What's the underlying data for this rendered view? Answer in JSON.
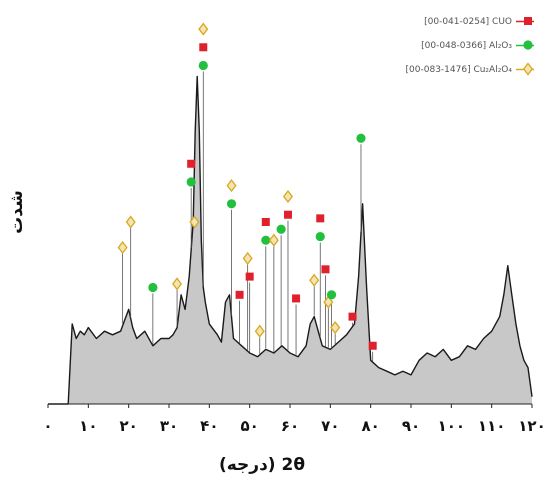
{
  "chart_data": {
    "type": "area",
    "xlabel": "2θ (درجه)",
    "ylabel": "شدت",
    "xlim": [
      0,
      120
    ],
    "ylim": [
      0,
      100
    ],
    "x_ticks": [
      "۰",
      "۱۰",
      "۲۰",
      "۳۰",
      "۴۰",
      "۵۰",
      "۶۰",
      "۷۰",
      "۸۰",
      "۹۰",
      "۱۰۰",
      "۱۱۰",
      "۱۲۰"
    ],
    "grid": false,
    "legend_position": "top-right",
    "legend": [
      {
        "label": "[00-041-0254] CUO",
        "marker": "square",
        "color": "#e0202c"
      },
      {
        "label": "[00-048-0366] Al₂O₃",
        "marker": "circle",
        "color": "#22c03c"
      },
      {
        "label": "[00-083-1476] Cu₂Al₂O₄",
        "marker": "diamond",
        "color": "#d8a820"
      }
    ],
    "series": [
      {
        "type": "area",
        "line_color": "#1a1a1a",
        "fill_color": "#c8c8c8",
        "x": [
          0,
          5,
          6,
          7,
          8,
          9,
          10,
          12,
          14,
          16,
          18,
          19,
          20,
          21,
          22,
          24,
          26,
          28,
          30,
          31,
          32,
          33,
          34,
          35,
          36,
          36.5,
          37,
          37.5,
          38,
          38.5,
          39,
          40,
          42,
          43,
          44,
          45,
          46,
          48,
          50,
          52,
          54,
          56,
          58,
          60,
          62,
          64,
          65,
          66,
          67,
          68,
          70,
          72,
          74,
          76,
          77,
          78,
          79,
          80,
          82,
          84,
          86,
          88,
          90,
          92,
          94,
          96,
          98,
          100,
          102,
          104,
          106,
          108,
          110,
          112,
          113,
          114,
          115,
          116,
          117,
          118,
          119,
          120
        ],
        "y": [
          0,
          0,
          22,
          18,
          20,
          19,
          21,
          18,
          20,
          19,
          20,
          23,
          26,
          21,
          18,
          20,
          16,
          18,
          18,
          19,
          21,
          30,
          26,
          35,
          50,
          75,
          90,
          75,
          45,
          32,
          28,
          22,
          19,
          17,
          28,
          30,
          18,
          16,
          14,
          13,
          15,
          14,
          16,
          14,
          13,
          16,
          22,
          24,
          20,
          16,
          15,
          17,
          19,
          22,
          35,
          55,
          32,
          12,
          10,
          9,
          8,
          9,
          8,
          12,
          14,
          13,
          15,
          12,
          13,
          16,
          15,
          18,
          20,
          24,
          30,
          38,
          30,
          22,
          16,
          12,
          10,
          2
        ]
      }
    ],
    "peak_markers": [
      {
        "x": 18.5,
        "kind": "diamond",
        "level": 43
      },
      {
        "x": 20.5,
        "kind": "diamond",
        "level": 50
      },
      {
        "x": 26,
        "kind": "circle",
        "level": 32
      },
      {
        "x": 32,
        "kind": "diamond",
        "level": 33
      },
      {
        "x": 35.5,
        "kind": "square",
        "level": 66
      },
      {
        "x": 35.5,
        "kind": "circle",
        "level": 61
      },
      {
        "x": 36.3,
        "kind": "diamond",
        "level": 50
      },
      {
        "x": 38.5,
        "kind": "diamond",
        "level": 103
      },
      {
        "x": 38.5,
        "kind": "square",
        "level": 98
      },
      {
        "x": 38.5,
        "kind": "circle",
        "level": 93
      },
      {
        "x": 45.5,
        "kind": "diamond",
        "level": 60
      },
      {
        "x": 45.5,
        "kind": "circle",
        "level": 55
      },
      {
        "x": 47.5,
        "kind": "square",
        "level": 30
      },
      {
        "x": 49.5,
        "kind": "diamond",
        "level": 40
      },
      {
        "x": 50,
        "kind": "square",
        "level": 35
      },
      {
        "x": 52.5,
        "kind": "diamond",
        "level": 20
      },
      {
        "x": 54,
        "kind": "square",
        "level": 50
      },
      {
        "x": 54,
        "kind": "circle",
        "level": 45
      },
      {
        "x": 56,
        "kind": "diamond",
        "level": 45
      },
      {
        "x": 57.8,
        "kind": "circle",
        "level": 48
      },
      {
        "x": 59.5,
        "kind": "diamond",
        "level": 57
      },
      {
        "x": 59.5,
        "kind": "square",
        "level": 52
      },
      {
        "x": 61.5,
        "kind": "square",
        "level": 29
      },
      {
        "x": 66,
        "kind": "diamond",
        "level": 34
      },
      {
        "x": 67.5,
        "kind": "square",
        "level": 51
      },
      {
        "x": 67.5,
        "kind": "circle",
        "level": 46
      },
      {
        "x": 68.8,
        "kind": "square",
        "level": 37
      },
      {
        "x": 69.5,
        "kind": "diamond",
        "level": 28
      },
      {
        "x": 70.3,
        "kind": "circle",
        "level": 30
      },
      {
        "x": 71.2,
        "kind": "diamond",
        "level": 21
      },
      {
        "x": 75.5,
        "kind": "square",
        "level": 24
      },
      {
        "x": 77.6,
        "kind": "circle",
        "level": 73
      },
      {
        "x": 80.5,
        "kind": "square",
        "level": 16
      }
    ]
  }
}
